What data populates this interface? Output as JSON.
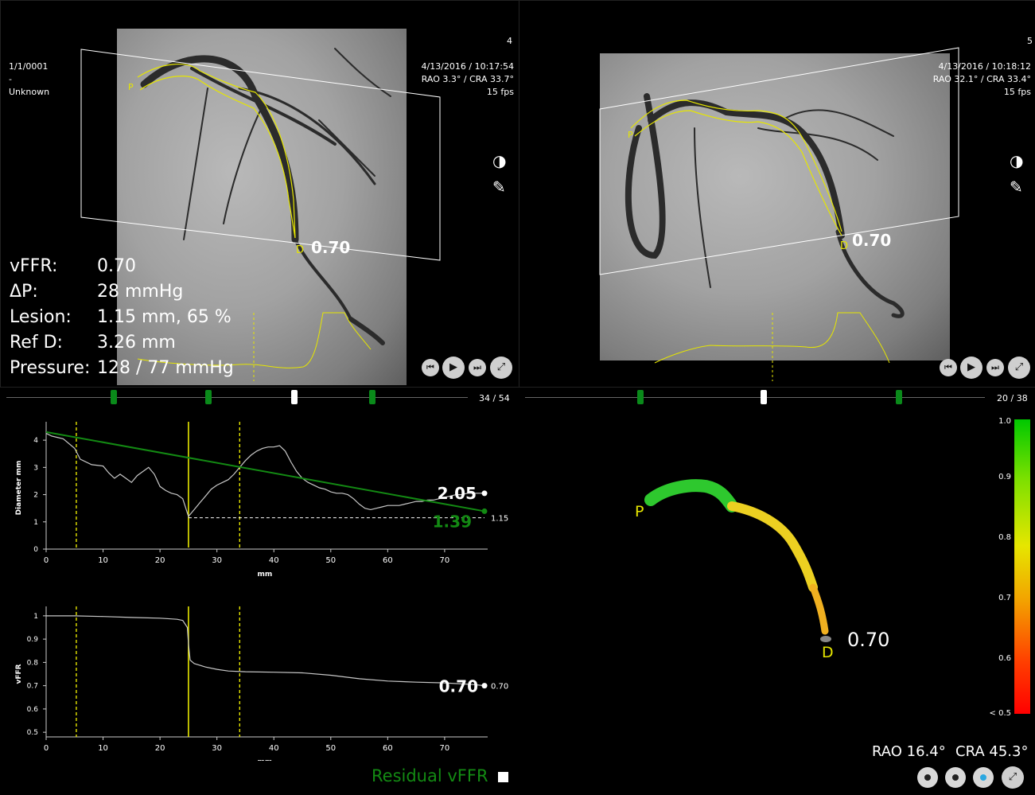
{
  "menu_icon": "hamburger-menu-icon",
  "left_view": {
    "frame_number": "4",
    "patient": {
      "date": "1/1/0001",
      "dash": "-",
      "name": "Unknown"
    },
    "acq_datetime": "4/13/2016 / 10:17:54",
    "angle": "RAO 3.3° / CRA 33.7°",
    "fps": "15 fps",
    "value_label": "0.70",
    "p_label": "P",
    "d_label": "D",
    "slider_counter": "34 /  54"
  },
  "right_view": {
    "frame_number": "5",
    "acq_datetime": "4/13/2016 / 10:18:12",
    "angle": "RAO 32.1° / CRA 33.4°",
    "fps": "15 fps",
    "value_label": "0.70",
    "p_label": "P",
    "d_label": "D",
    "slider_counter": "20 /  38"
  },
  "metrics": [
    {
      "label": "vFFR:",
      "value": "0.70"
    },
    {
      "label": "ΔP:",
      "value": "28 mmHg"
    },
    {
      "label": "Lesion:",
      "value": "1.15 mm, 65 %"
    },
    {
      "label": "Ref D:",
      "value": "3.26 mm"
    },
    {
      "label": "Pressure:",
      "value": "128 / 77 mmHg"
    }
  ],
  "colors": {
    "accent_green": "#0a8a1a",
    "vessel_yellow": "#e6e600",
    "reference_green": "#138a13"
  },
  "chart_data": [
    {
      "type": "line",
      "title": "",
      "xlabel": "mm",
      "ylabel": "Diameter mm",
      "xlim": [
        0,
        77
      ],
      "ylim": [
        0,
        4.5
      ],
      "x_ticks": [
        0,
        10,
        20,
        30,
        40,
        50,
        60,
        70
      ],
      "y_ticks": [
        0,
        1,
        2,
        3,
        4
      ],
      "series": [
        {
          "x": [
            0,
            1,
            3,
            5,
            6,
            8,
            10,
            11,
            12,
            13,
            14,
            15,
            16,
            17,
            18,
            19,
            20,
            21,
            22,
            23,
            24,
            25,
            26,
            27,
            28,
            29,
            30,
            31,
            32,
            33,
            34,
            35,
            36,
            37,
            38,
            39,
            40,
            41,
            42,
            43,
            44,
            45,
            46,
            47,
            48,
            49,
            50,
            51,
            52,
            53,
            54,
            55,
            56,
            57,
            58,
            59,
            60,
            61,
            62,
            63,
            64,
            65,
            66,
            67,
            68,
            69,
            70,
            71,
            72,
            73,
            74,
            75,
            76,
            77
          ],
          "values": [
            4.25,
            4.15,
            4.05,
            3.7,
            3.3,
            3.1,
            3.05,
            2.8,
            2.6,
            2.75,
            2.6,
            2.45,
            2.7,
            2.85,
            3.0,
            2.75,
            2.3,
            2.15,
            2.05,
            2.0,
            1.85,
            1.2,
            1.45,
            1.7,
            1.95,
            2.2,
            2.35,
            2.45,
            2.55,
            2.75,
            3.0,
            3.25,
            3.45,
            3.6,
            3.7,
            3.75,
            3.75,
            3.8,
            3.6,
            3.2,
            2.85,
            2.6,
            2.45,
            2.35,
            2.25,
            2.2,
            2.1,
            2.05,
            2.05,
            2.0,
            1.85,
            1.65,
            1.5,
            1.45,
            1.5,
            1.55,
            1.6,
            1.6,
            1.6,
            1.65,
            1.7,
            1.75,
            1.75,
            1.8,
            1.8,
            1.85,
            1.9,
            1.95,
            2.0,
            2.0,
            2.05,
            2.05,
            2.05,
            2.05
          ]
        }
      ],
      "reference_line": {
        "x": [
          0,
          77
        ],
        "values": [
          4.3,
          1.39
        ]
      },
      "lesion_minimum": 1.15,
      "vertical_markers": {
        "solid": [
          25
        ],
        "dashed": [
          5.3,
          34
        ]
      },
      "end_labels": {
        "diameter": "2.05",
        "reference": "1.39",
        "minimum": "1.15"
      }
    },
    {
      "type": "line",
      "title": "",
      "xlabel": "mm",
      "ylabel": "vFFR",
      "xlim": [
        0,
        77
      ],
      "ylim": [
        0.48,
        1.02
      ],
      "x_ticks": [
        0,
        10,
        20,
        30,
        40,
        50,
        60,
        70
      ],
      "y_ticks": [
        0.5,
        0.6,
        0.7,
        0.8,
        0.9,
        1
      ],
      "series": [
        {
          "x": [
            0,
            5,
            10,
            15,
            20,
            23,
            24,
            24.8,
            25,
            25.3,
            26,
            28,
            30,
            32,
            35,
            40,
            45,
            50,
            55,
            60,
            65,
            70,
            75,
            77
          ],
          "values": [
            1.0,
            1.0,
            0.997,
            0.993,
            0.99,
            0.985,
            0.98,
            0.95,
            0.88,
            0.81,
            0.795,
            0.78,
            0.77,
            0.763,
            0.76,
            0.758,
            0.755,
            0.745,
            0.73,
            0.72,
            0.715,
            0.712,
            0.705,
            0.7
          ]
        }
      ],
      "vertical_markers": {
        "solid": [
          25
        ],
        "dashed": [
          5.3,
          34
        ]
      },
      "end_labels": {
        "value": "0.70",
        "small": "0.70"
      }
    }
  ],
  "colorbar": {
    "ticks": [
      "1.0",
      "0.9",
      "0.8",
      "0.7",
      "0.6",
      "< 0.5"
    ]
  },
  "model_view": {
    "p_label": "P",
    "d_label": "D",
    "value": "0.70",
    "rao": "RAO 16.4°",
    "cra": "CRA 45.3°"
  },
  "residual_label": "Residual vFFR",
  "controls": {
    "prev_icon": "skip-previous-icon",
    "play_icon": "play-icon",
    "next_icon": "skip-next-icon",
    "expand_icon": "expand-icon",
    "brightness_icon": "brightness-icon",
    "pencil_icon": "pencil-icon"
  }
}
